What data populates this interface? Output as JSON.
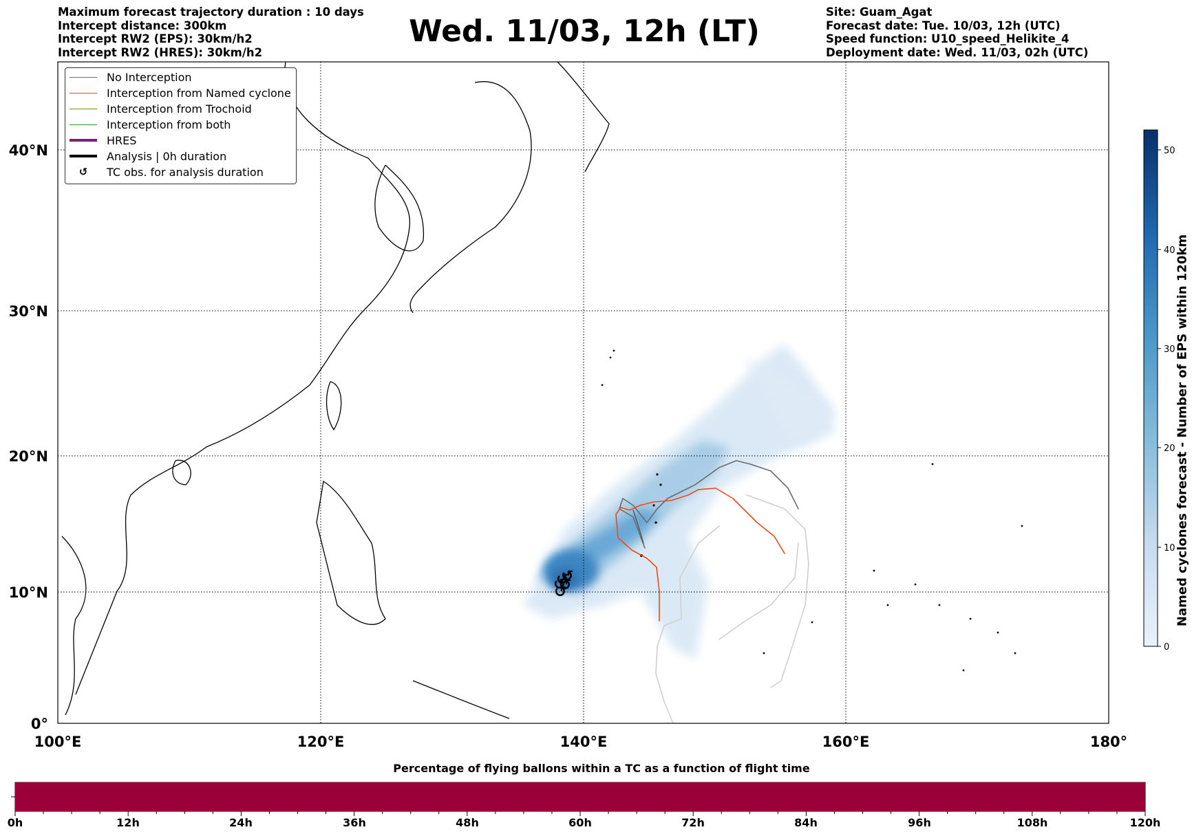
{
  "header": {
    "left_lines": [
      "Maximum forecast trajectory duration : 10 days",
      "Intercept distance: 300km",
      "Intercept RW2 (EPS):  30km/h2",
      "Intercept RW2 (HRES): 30km/h2"
    ],
    "title": "Wed. 11/03, 12h (LT)",
    "right_lines": [
      "Site: Guam_Agat",
      "Forecast date: Tue. 10/03, 12h (UTC)",
      "Speed function: U10_speed_Helikite_4",
      "Deployment date: Wed. 11/03, 02h (UTC)"
    ]
  },
  "map": {
    "lon_ticks": [
      "100°E",
      "120°E",
      "140°E",
      "160°E",
      "180°"
    ],
    "lat_ticks": [
      "40°N",
      "30°N",
      "20°N",
      "10°N",
      "0°"
    ],
    "extent": {
      "lon": [
        100,
        180
      ],
      "lat": [
        0,
        45
      ]
    }
  },
  "legend": {
    "items": [
      {
        "label": "No Interception",
        "color": "#6b6b6b",
        "style": "thin"
      },
      {
        "label": "Interception from Named cyclone",
        "color": "#f04a14",
        "style": "thin"
      },
      {
        "label": "Interception from Trochoid",
        "color": "#8a8a00",
        "style": "thin"
      },
      {
        "label": "Interception from both",
        "color": "#2e9a2e",
        "style": "thin"
      },
      {
        "label": "HRES",
        "color": "#7a1e7e",
        "style": "thick"
      },
      {
        "label": "Analysis | 0h duration",
        "color": "#000000",
        "style": "thick"
      },
      {
        "label": "TC obs. for analysis duration",
        "color": "#000000",
        "style": "symbol",
        "symbol": "↺"
      }
    ]
  },
  "colorbar": {
    "title": "Named cyclones forecast - Number of EPS within 120km",
    "ticks": [
      "0",
      "10",
      "20",
      "30",
      "40",
      "50"
    ],
    "range": [
      0,
      52
    ],
    "color_low": "#eaf2fb",
    "color_high": "#08306b"
  },
  "bottom_bar": {
    "title": "Percentage of flying ballons within a TC as a function of flight time",
    "ticks": [
      "0h",
      "12h",
      "24h",
      "36h",
      "48h",
      "60h",
      "72h",
      "84h",
      "96h",
      "108h",
      "120h"
    ],
    "color": "#9b0039",
    "fill": 1.0
  }
}
